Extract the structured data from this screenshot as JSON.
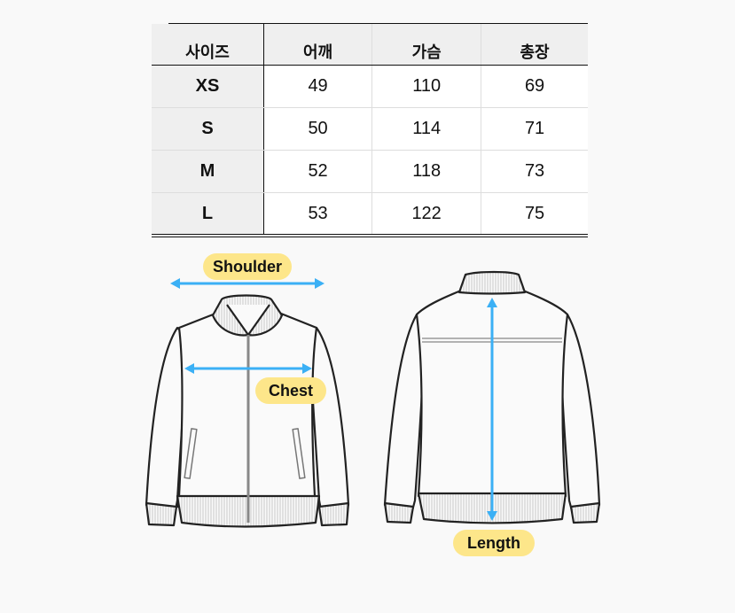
{
  "size_table": {
    "headers": [
      "사이즈",
      "어깨",
      "가슴",
      "총장"
    ],
    "rows": [
      {
        "size": "XS",
        "shoulder": "49",
        "chest": "110",
        "length": "69"
      },
      {
        "size": "S",
        "shoulder": "50",
        "chest": "114",
        "length": "71"
      },
      {
        "size": "M",
        "shoulder": "52",
        "chest": "118",
        "length": "73"
      },
      {
        "size": "L",
        "shoulder": "53",
        "chest": "122",
        "length": "75"
      }
    ]
  },
  "diagram": {
    "shoulder_label": "Shoulder",
    "chest_label": "Chest",
    "length_label": "Length",
    "arrow_color": "#3bb0f5",
    "label_bg": "#fde68a"
  }
}
